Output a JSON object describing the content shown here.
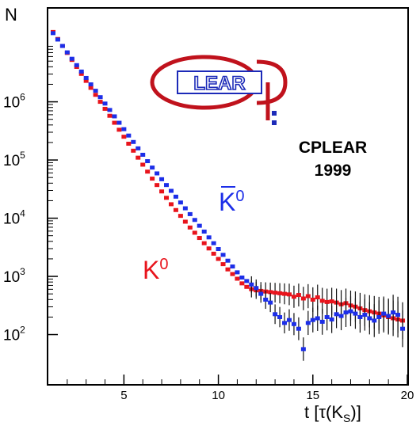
{
  "chart_data": {
    "type": "scatter",
    "title": "",
    "ylabel": "N",
    "xlabel_main": "t [",
    "xlabel_tau": "τ(K",
    "xlabel_sub": "S",
    "xlabel_end": ")]",
    "xlim": [
      1,
      20
    ],
    "ylim_log10": [
      1.15,
      7.6
    ],
    "log_y": true,
    "grid": false,
    "x_ticks": [
      {
        "value": 5,
        "label": "5"
      },
      {
        "value": 10,
        "label": "10"
      },
      {
        "value": 15,
        "label": "15"
      },
      {
        "value": 20,
        "label": "20"
      }
    ],
    "y_ticks": [
      {
        "exp": 2,
        "base": "10",
        "sup": "2"
      },
      {
        "exp": 3,
        "base": "10",
        "sup": "3"
      },
      {
        "exp": 4,
        "base": "10",
        "sup": "4"
      },
      {
        "exp": 5,
        "base": "10",
        "sup": "5"
      },
      {
        "exp": 6,
        "base": "10",
        "sup": "6"
      }
    ],
    "series": [
      {
        "name": "K0",
        "color": "#e8141c",
        "points": [
          [
            1.25,
            7.2
          ],
          [
            1.5,
            7.08
          ],
          [
            1.75,
            6.96
          ],
          [
            2.0,
            6.84
          ],
          [
            2.25,
            6.72
          ],
          [
            2.5,
            6.6
          ],
          [
            2.75,
            6.48
          ],
          [
            3.0,
            6.36
          ],
          [
            3.25,
            6.24
          ],
          [
            3.5,
            6.12
          ],
          [
            3.75,
            6.0
          ],
          [
            4.0,
            5.88
          ],
          [
            4.25,
            5.76
          ],
          [
            4.5,
            5.64
          ],
          [
            4.75,
            5.52
          ],
          [
            5.0,
            5.4
          ],
          [
            5.25,
            5.28
          ],
          [
            5.5,
            5.16
          ],
          [
            5.75,
            5.04
          ],
          [
            6.0,
            4.92
          ],
          [
            6.25,
            4.8
          ],
          [
            6.5,
            4.68
          ],
          [
            6.75,
            4.57
          ],
          [
            7.0,
            4.46
          ],
          [
            7.25,
            4.35
          ],
          [
            7.5,
            4.24
          ],
          [
            7.75,
            4.14
          ],
          [
            8.0,
            4.04
          ],
          [
            8.25,
            3.94
          ],
          [
            8.5,
            3.84
          ],
          [
            8.75,
            3.75
          ],
          [
            9.0,
            3.66
          ],
          [
            9.25,
            3.57
          ],
          [
            9.5,
            3.48
          ],
          [
            9.75,
            3.39
          ],
          [
            10.0,
            3.3
          ],
          [
            10.25,
            3.21
          ],
          [
            10.5,
            3.12
          ],
          [
            10.75,
            3.04
          ],
          [
            11.0,
            2.96
          ],
          [
            11.25,
            2.88
          ],
          [
            11.5,
            2.82
          ],
          [
            11.75,
            2.78
          ],
          [
            12.0,
            2.76
          ],
          [
            12.25,
            2.75
          ],
          [
            12.5,
            2.74
          ],
          [
            12.75,
            2.73
          ],
          [
            13.0,
            2.72
          ],
          [
            13.25,
            2.71
          ],
          [
            13.5,
            2.7
          ],
          [
            13.75,
            2.69
          ],
          [
            14.0,
            2.65
          ],
          [
            14.25,
            2.68
          ],
          [
            14.5,
            2.62
          ],
          [
            14.75,
            2.66
          ],
          [
            15.0,
            2.6
          ],
          [
            15.25,
            2.64
          ],
          [
            15.5,
            2.58
          ],
          [
            15.75,
            2.56
          ],
          [
            16.0,
            2.57
          ],
          [
            16.25,
            2.55
          ],
          [
            16.5,
            2.52
          ],
          [
            16.75,
            2.54
          ],
          [
            17.0,
            2.5
          ],
          [
            17.25,
            2.48
          ],
          [
            17.5,
            2.45
          ],
          [
            17.75,
            2.42
          ],
          [
            18.0,
            2.4
          ],
          [
            18.25,
            2.38
          ],
          [
            18.5,
            2.36
          ],
          [
            18.75,
            2.33
          ],
          [
            19.0,
            2.3
          ],
          [
            19.25,
            2.28
          ],
          [
            19.5,
            2.26
          ],
          [
            19.75,
            2.24
          ]
        ]
      },
      {
        "name": "K̄0",
        "color": "#1c2ee8",
        "points": [
          [
            1.25,
            7.18
          ],
          [
            1.5,
            7.07
          ],
          [
            1.75,
            6.96
          ],
          [
            2.0,
            6.85
          ],
          [
            2.25,
            6.74
          ],
          [
            2.5,
            6.63
          ],
          [
            2.75,
            6.52
          ],
          [
            3.0,
            6.41
          ],
          [
            3.25,
            6.3
          ],
          [
            3.5,
            6.19
          ],
          [
            3.75,
            6.08
          ],
          [
            4.0,
            5.97
          ],
          [
            4.25,
            5.86
          ],
          [
            4.5,
            5.75
          ],
          [
            4.75,
            5.64
          ],
          [
            5.0,
            5.53
          ],
          [
            5.25,
            5.42
          ],
          [
            5.5,
            5.31
          ],
          [
            5.75,
            5.2
          ],
          [
            6.0,
            5.09
          ],
          [
            6.25,
            4.98
          ],
          [
            6.5,
            4.87
          ],
          [
            6.75,
            4.77
          ],
          [
            7.0,
            4.67
          ],
          [
            7.25,
            4.57
          ],
          [
            7.5,
            4.47
          ],
          [
            7.75,
            4.37
          ],
          [
            8.0,
            4.27
          ],
          [
            8.25,
            4.17
          ],
          [
            8.5,
            4.07
          ],
          [
            8.75,
            3.97
          ],
          [
            9.0,
            3.87
          ],
          [
            9.25,
            3.77
          ],
          [
            9.5,
            3.67
          ],
          [
            9.75,
            3.57
          ],
          [
            10.0,
            3.47
          ],
          [
            10.25,
            3.37
          ],
          [
            10.5,
            3.27
          ],
          [
            10.75,
            3.17
          ],
          [
            11.0,
            3.07
          ],
          [
            11.25,
            2.98
          ],
          [
            11.5,
            2.92
          ],
          [
            11.75,
            2.86
          ],
          [
            12.0,
            2.8
          ],
          [
            12.25,
            2.7
          ],
          [
            12.5,
            2.6
          ],
          [
            12.75,
            2.55
          ],
          [
            13.0,
            2.35
          ],
          [
            13.25,
            2.3
          ],
          [
            13.5,
            2.2
          ],
          [
            13.75,
            2.25
          ],
          [
            14.0,
            2.18
          ],
          [
            14.25,
            2.1
          ],
          [
            14.5,
            1.75
          ],
          [
            14.75,
            2.2
          ],
          [
            15.0,
            2.25
          ],
          [
            15.25,
            2.28
          ],
          [
            15.5,
            2.22
          ],
          [
            15.75,
            2.3
          ],
          [
            16.0,
            2.26
          ],
          [
            16.25,
            2.35
          ],
          [
            16.5,
            2.32
          ],
          [
            16.75,
            2.38
          ],
          [
            17.0,
            2.4
          ],
          [
            17.25,
            2.36
          ],
          [
            17.5,
            2.3
          ],
          [
            17.75,
            2.34
          ],
          [
            18.0,
            2.28
          ],
          [
            18.25,
            2.24
          ],
          [
            18.5,
            2.3
          ],
          [
            18.75,
            2.36
          ],
          [
            19.0,
            2.32
          ],
          [
            19.25,
            2.38
          ],
          [
            19.5,
            2.34
          ],
          [
            19.75,
            2.1
          ]
        ]
      }
    ],
    "labels": {
      "k0": {
        "base": "K",
        "sup": "0",
        "color": "#e8141c"
      },
      "k0bar": {
        "base": "K",
        "sup": "0",
        "color": "#1c2ee8"
      }
    },
    "annotation": {
      "line1": "CPLEAR",
      "line2": "1999"
    },
    "logo": {
      "text": "LEAR",
      "color": "#c0121c",
      "text_color": "#1c2ab8"
    }
  }
}
